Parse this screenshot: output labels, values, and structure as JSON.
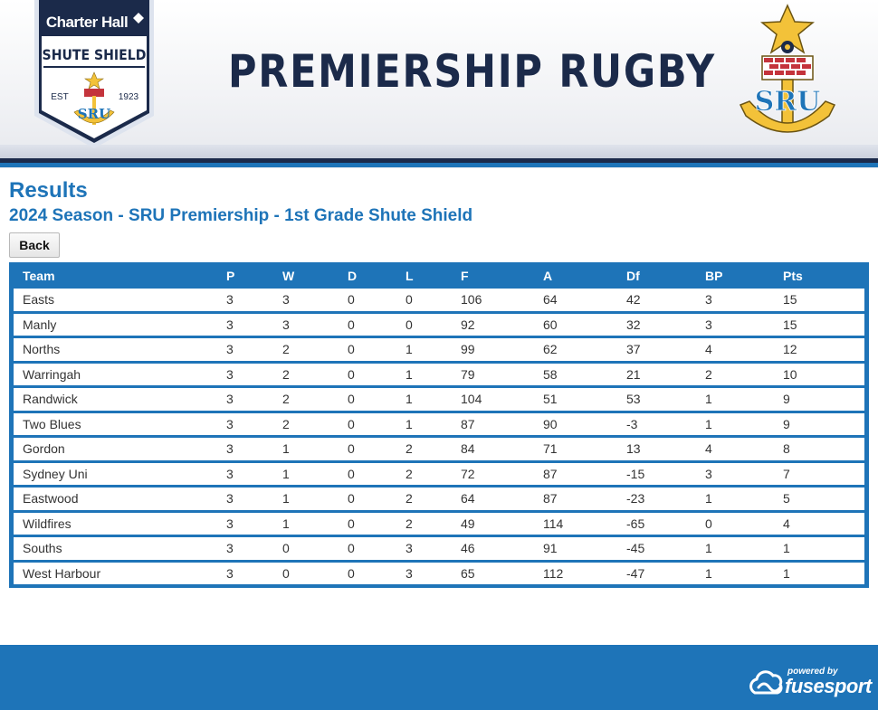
{
  "header": {
    "sponsor": "Charter Hall",
    "competition_badge": "SHUTE SHIELD",
    "badge_est": "EST",
    "badge_year": "1923",
    "badge_org": "SRU",
    "title": "PREMIERSHIP RUGBY",
    "org_logo_text": "SRU"
  },
  "page": {
    "title": "Results",
    "subtitle": "2024 Season - SRU Premiership - 1st Grade Shute Shield",
    "back_label": "Back"
  },
  "ladder": {
    "columns": [
      "Team",
      "P",
      "W",
      "D",
      "L",
      "F",
      "A",
      "Df",
      "BP",
      "Pts"
    ],
    "rows": [
      [
        "Easts",
        "3",
        "3",
        "0",
        "0",
        "106",
        "64",
        "42",
        "3",
        "15"
      ],
      [
        "Manly",
        "3",
        "3",
        "0",
        "0",
        "92",
        "60",
        "32",
        "3",
        "15"
      ],
      [
        "Norths",
        "3",
        "2",
        "0",
        "1",
        "99",
        "62",
        "37",
        "4",
        "12"
      ],
      [
        "Warringah",
        "3",
        "2",
        "0",
        "1",
        "79",
        "58",
        "21",
        "2",
        "10"
      ],
      [
        "Randwick",
        "3",
        "2",
        "0",
        "1",
        "104",
        "51",
        "53",
        "1",
        "9"
      ],
      [
        "Two Blues",
        "3",
        "2",
        "0",
        "1",
        "87",
        "90",
        "-3",
        "1",
        "9"
      ],
      [
        "Gordon",
        "3",
        "1",
        "0",
        "2",
        "84",
        "71",
        "13",
        "4",
        "8"
      ],
      [
        "Sydney Uni",
        "3",
        "1",
        "0",
        "2",
        "72",
        "87",
        "-15",
        "3",
        "7"
      ],
      [
        "Eastwood",
        "3",
        "1",
        "0",
        "2",
        "64",
        "87",
        "-23",
        "1",
        "5"
      ],
      [
        "Wildfires",
        "3",
        "1",
        "0",
        "2",
        "49",
        "114",
        "-65",
        "0",
        "4"
      ],
      [
        "Souths",
        "3",
        "0",
        "0",
        "3",
        "46",
        "91",
        "-45",
        "1",
        "1"
      ],
      [
        "West Harbour",
        "3",
        "0",
        "0",
        "3",
        "65",
        "112",
        "-47",
        "1",
        "1"
      ]
    ]
  },
  "footer": {
    "powered_by": "powered by",
    "brand": "fusesport"
  },
  "colors": {
    "primary_blue": "#1e74b8",
    "navy": "#1b2a4a",
    "gold": "#f3c239",
    "brick_red": "#c4343c"
  },
  "icons": {
    "competition_logo": "shute-shield-badge-icon",
    "org_logo": "sru-anchor-logo-icon",
    "footer_logo": "fusesport-cloud-icon"
  }
}
